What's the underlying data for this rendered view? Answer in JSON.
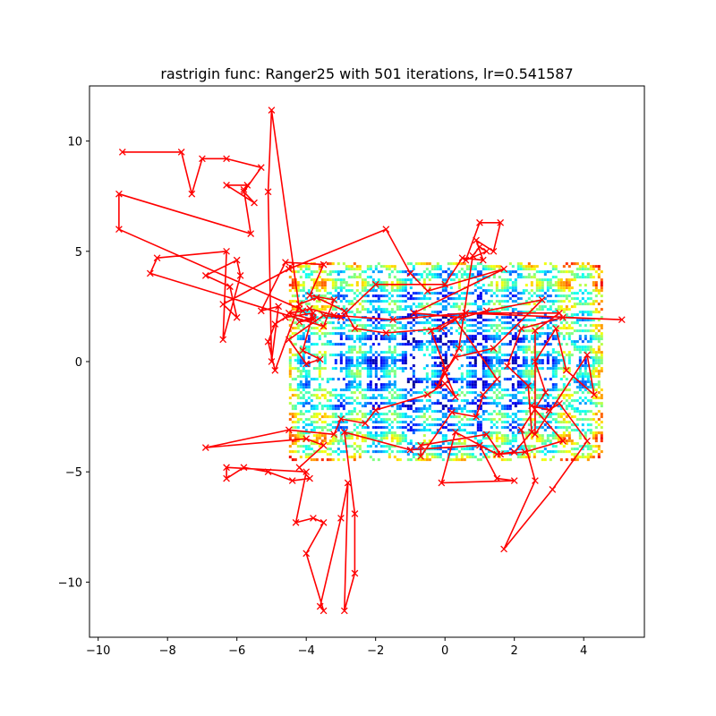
{
  "chart_data": {
    "type": "line",
    "title": "rastrigin func: Ranger25 with 501 iterations, lr=0.541587",
    "xlabel": "",
    "ylabel": "",
    "xlim": [
      -10.25,
      5.75
    ],
    "ylim": [
      -12.5,
      12.5
    ],
    "x_ticks": [
      -10,
      -8,
      -6,
      -4,
      -2,
      0,
      2,
      4
    ],
    "x_tick_labels": [
      "−10",
      "−8",
      "−6",
      "−4",
      "−2",
      "0",
      "2",
      "4"
    ],
    "y_ticks": [
      -10,
      -5,
      0,
      5,
      10
    ],
    "y_tick_labels": [
      "−10",
      "−5",
      "0",
      "5",
      "10"
    ],
    "grid": false,
    "legend": "none",
    "contour": {
      "function": "rastrigin",
      "x_range": [
        -4.5,
        4.5
      ],
      "y_range": [
        -4.5,
        4.5
      ],
      "colormap": "jet"
    },
    "series": [
      {
        "color": "#ff0000",
        "marker": "x",
        "points": [
          [
            -9.3,
            9.5
          ],
          [
            -7.6,
            9.5
          ],
          [
            -7.3,
            7.6
          ],
          [
            -7.0,
            9.2
          ],
          [
            -6.3,
            9.2
          ],
          [
            -5.3,
            8.8
          ],
          [
            -5.8,
            7.7
          ],
          [
            -5.5,
            7.2
          ],
          [
            -6.3,
            8.0
          ],
          [
            -5.7,
            8.0
          ],
          [
            -5.8,
            7.8
          ],
          [
            -5.6,
            5.8
          ],
          [
            -9.4,
            7.6
          ],
          [
            -9.4,
            6.0
          ],
          [
            -4.2,
            2.4
          ],
          [
            -5.0,
            11.4
          ],
          [
            -5.1,
            7.7
          ],
          [
            -5.0,
            0.0
          ],
          [
            -4.8,
            2.5
          ],
          [
            -5.3,
            2.3
          ],
          [
            -4.6,
            4.5
          ],
          [
            -3.5,
            4.4
          ],
          [
            -3.9,
            3.0
          ],
          [
            -3.2,
            2.8
          ],
          [
            -3.5,
            1.6
          ],
          [
            -8.5,
            4.0
          ],
          [
            -8.3,
            4.7
          ],
          [
            -6.3,
            5.0
          ],
          [
            -6.4,
            1.0
          ],
          [
            -5.9,
            3.9
          ],
          [
            -6.0,
            4.6
          ],
          [
            -6.9,
            3.9
          ],
          [
            -6.2,
            3.4
          ],
          [
            -6.0,
            2.0
          ],
          [
            -6.4,
            2.6
          ],
          [
            -4.5,
            4.2
          ],
          [
            -1.7,
            6.0
          ],
          [
            -1.0,
            4.0
          ],
          [
            -0.5,
            3.2
          ],
          [
            1.7,
            4.2
          ],
          [
            -0.9,
            2.2
          ],
          [
            0.5,
            2.0
          ],
          [
            1.2,
            2.3
          ],
          [
            2.8,
            2.8
          ],
          [
            1.4,
            0.6
          ],
          [
            0.3,
            0.2
          ],
          [
            0.0,
            -0.5
          ],
          [
            0.3,
            -1.6
          ],
          [
            0.0,
            -1.0
          ],
          [
            -0.5,
            -1.5
          ],
          [
            -2.0,
            -2.2
          ],
          [
            -2.3,
            -2.8
          ],
          [
            -3.0,
            -2.6
          ],
          [
            -3.2,
            -3.3
          ],
          [
            -4.5,
            -3.1
          ],
          [
            -6.9,
            -3.9
          ],
          [
            -4.0,
            -3.5
          ],
          [
            -3.5,
            -3.8
          ],
          [
            -4.2,
            -4.8
          ],
          [
            -3.9,
            -5.3
          ],
          [
            -4.4,
            -5.4
          ],
          [
            -5.1,
            -5.0
          ],
          [
            -5.8,
            -4.8
          ],
          [
            -6.3,
            -5.3
          ],
          [
            -6.3,
            -4.8
          ],
          [
            -4.0,
            -5.0
          ],
          [
            -4.3,
            -7.3
          ],
          [
            -3.8,
            -7.1
          ],
          [
            -3.5,
            -7.3
          ],
          [
            -4.0,
            -8.7
          ],
          [
            -3.5,
            -11.3
          ],
          [
            -3.6,
            -11.1
          ],
          [
            -3.0,
            -7.1
          ],
          [
            -2.8,
            -5.5
          ],
          [
            -2.9,
            -11.3
          ],
          [
            -2.6,
            -9.6
          ],
          [
            -2.6,
            -6.9
          ],
          [
            -2.9,
            -3.2
          ],
          [
            -1.0,
            -4.0
          ],
          [
            1.0,
            -3.8
          ],
          [
            1.5,
            -5.3
          ],
          [
            2.0,
            -5.4
          ],
          [
            -0.1,
            -5.5
          ],
          [
            0.3,
            -3.2
          ],
          [
            1.5,
            -4.2
          ],
          [
            2.0,
            -4.1
          ],
          [
            2.5,
            -3.2
          ],
          [
            2.4,
            -1.1
          ],
          [
            1.8,
            -0.2
          ],
          [
            2.2,
            1.5
          ],
          [
            3.4,
            2.0
          ],
          [
            5.1,
            1.9
          ],
          [
            0.6,
            2.2
          ],
          [
            -0.4,
            1.4
          ],
          [
            0.0,
            -0.3
          ],
          [
            -0.2,
            -1.1
          ],
          [
            0.4,
            0.6
          ],
          [
            0.8,
            4.8
          ],
          [
            1.0,
            5.2
          ],
          [
            1.2,
            5.0
          ],
          [
            0.6,
            4.6
          ],
          [
            1.0,
            6.3
          ],
          [
            1.6,
            6.3
          ],
          [
            1.4,
            5.0
          ],
          [
            0.9,
            5.5
          ],
          [
            1.1,
            4.6
          ],
          [
            0.5,
            4.7
          ],
          [
            0.0,
            3.5
          ],
          [
            -2.0,
            3.5
          ],
          [
            -3.0,
            2.0
          ],
          [
            -3.5,
            2.1
          ],
          [
            -4.5,
            1.0
          ],
          [
            -4.0,
            -0.1
          ],
          [
            -3.6,
            0.1
          ],
          [
            -4.1,
            0.5
          ],
          [
            -3.8,
            2.2
          ],
          [
            -4.6,
            2.0
          ],
          [
            -4.9,
            1.7
          ],
          [
            -5.1,
            0.9
          ],
          [
            -4.9,
            -0.4
          ],
          [
            -4.2,
            2.6
          ],
          [
            -3.7,
            2.9
          ],
          [
            -2.9,
            2.3
          ],
          [
            -2.6,
            1.5
          ],
          [
            -1.7,
            1.3
          ],
          [
            -0.1,
            1.5
          ],
          [
            0.3,
            1.9
          ],
          [
            1.5,
            -0.8
          ],
          [
            1.1,
            -1.5
          ],
          [
            0.9,
            -2.5
          ],
          [
            0.2,
            -2.3
          ],
          [
            -0.7,
            -4.3
          ],
          [
            -0.7,
            -3.8
          ],
          [
            1.2,
            -3.3
          ],
          [
            1.6,
            -4.2
          ],
          [
            2.3,
            -4.1
          ],
          [
            3.4,
            -3.6
          ],
          [
            2.5,
            -2.0
          ],
          [
            3.0,
            -2.2
          ],
          [
            3.3,
            -1.9
          ],
          [
            4.1,
            -3.6
          ],
          [
            3.1,
            -5.8
          ],
          [
            1.7,
            -8.5
          ],
          [
            2.6,
            -5.4
          ],
          [
            2.2,
            -3.1
          ],
          [
            2.9,
            -1.4
          ],
          [
            2.6,
            0.0
          ],
          [
            3.2,
            1.5
          ],
          [
            3.5,
            -0.4
          ],
          [
            4.3,
            -1.5
          ],
          [
            4.1,
            0.3
          ],
          [
            2.6,
            -3.3
          ],
          [
            2.6,
            1.4
          ],
          [
            3.3,
            2.2
          ],
          [
            0.6,
            2.2
          ],
          [
            -1.5,
            1.9
          ],
          [
            -3.2,
            2.1
          ],
          [
            -3.9,
            2.4
          ],
          [
            -4.1,
            2.3
          ],
          [
            -4.5,
            2.2
          ],
          [
            -3.8,
            1.9
          ],
          [
            -4.2,
            1.8
          ],
          [
            -3.8,
            2.0
          ]
        ]
      }
    ]
  }
}
